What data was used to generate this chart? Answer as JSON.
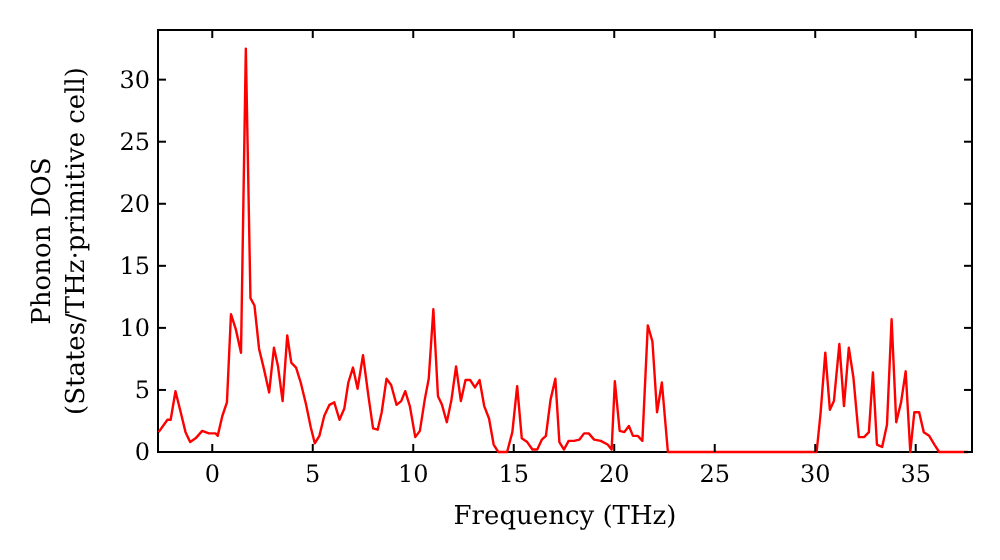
{
  "chart_data": {
    "type": "line",
    "xlabel": "Frequency (THz)",
    "ylabel": "Phonon DOS\n(States/THz·primitive cell)",
    "xlim": [
      -2.7,
      37.8
    ],
    "ylim": [
      0,
      34
    ],
    "xticks": [
      0,
      5,
      10,
      15,
      20,
      25,
      30,
      35
    ],
    "yticks": [
      0,
      5,
      10,
      15,
      20,
      25,
      30
    ],
    "grid": false,
    "marker": "none",
    "line_style": "solid",
    "series": [
      {
        "color": "#ff0000",
        "x": [
          -2.67,
          -2.23,
          -2.07,
          -1.83,
          -1.57,
          -1.33,
          -1.1,
          -0.83,
          -0.5,
          -0.17,
          0.17,
          0.27,
          0.5,
          0.73,
          0.93,
          1.17,
          1.43,
          1.67,
          1.9,
          2.1,
          2.33,
          2.57,
          2.83,
          3.07,
          3.27,
          3.5,
          3.73,
          3.93,
          4.17,
          4.4,
          4.67,
          4.9,
          5.1,
          5.33,
          5.57,
          5.83,
          6.07,
          6.33,
          6.57,
          6.77,
          7.0,
          7.23,
          7.5,
          7.77,
          8.0,
          8.23,
          8.43,
          8.67,
          8.9,
          9.17,
          9.4,
          9.6,
          9.83,
          10.1,
          10.33,
          10.57,
          10.77,
          11.0,
          11.23,
          11.43,
          11.67,
          11.9,
          12.13,
          12.37,
          12.6,
          12.83,
          13.07,
          13.3,
          13.53,
          13.77,
          14.0,
          14.23,
          14.67,
          14.93,
          15.17,
          15.4,
          15.67,
          15.93,
          16.17,
          16.4,
          16.6,
          16.83,
          17.07,
          17.27,
          17.5,
          17.73,
          18.0,
          18.27,
          18.5,
          18.73,
          19.0,
          19.33,
          19.67,
          19.87,
          20.03,
          20.27,
          20.5,
          20.73,
          20.93,
          21.17,
          21.4,
          21.67,
          21.9,
          22.13,
          22.37,
          22.67,
          30.07,
          30.27,
          30.5,
          30.73,
          30.93,
          31.2,
          31.43,
          31.67,
          31.9,
          32.17,
          32.43,
          32.67,
          32.87,
          33.07,
          33.33,
          33.57,
          33.8,
          34.03,
          34.27,
          34.5,
          34.73,
          34.93,
          35.17,
          35.4,
          35.67,
          35.93,
          36.17,
          37.6
        ],
        "values": [
          1.6,
          2.6,
          2.6,
          4.9,
          3.2,
          1.6,
          0.8,
          1.1,
          1.7,
          1.5,
          1.5,
          1.3,
          2.9,
          4.0,
          11.1,
          9.9,
          8.0,
          32.5,
          12.4,
          11.8,
          8.3,
          6.7,
          4.8,
          8.4,
          6.9,
          4.1,
          9.4,
          7.2,
          6.8,
          5.6,
          3.8,
          2.0,
          0.7,
          1.3,
          2.9,
          3.8,
          4.0,
          2.6,
          3.5,
          5.6,
          6.8,
          5.1,
          7.8,
          4.5,
          1.9,
          1.8,
          3.2,
          5.9,
          5.4,
          3.8,
          4.1,
          4.9,
          3.7,
          1.2,
          1.7,
          4.2,
          5.9,
          11.5,
          4.5,
          3.8,
          2.4,
          4.2,
          6.9,
          4.1,
          5.8,
          5.8,
          5.2,
          5.8,
          3.7,
          2.7,
          0.6,
          0,
          0,
          1.6,
          5.3,
          1.1,
          0.8,
          0.2,
          0.2,
          1.0,
          1.3,
          4.2,
          5.9,
          0.8,
          0.2,
          0.9,
          0.9,
          1.0,
          1.5,
          1.5,
          1.0,
          0.9,
          0.6,
          0.2,
          5.7,
          1.7,
          1.6,
          2.1,
          1.3,
          1.3,
          0.9,
          10.2,
          8.9,
          3.2,
          5.6,
          0,
          0,
          3.2,
          8.0,
          3.4,
          4.1,
          8.7,
          3.7,
          8.4,
          6.0,
          1.2,
          1.2,
          1.6,
          6.4,
          0.6,
          0.4,
          2.2,
          10.7,
          2.4,
          4.0,
          6.5,
          0,
          3.2,
          3.2,
          1.6,
          1.3,
          0.6,
          0,
          0
        ]
      }
    ]
  }
}
